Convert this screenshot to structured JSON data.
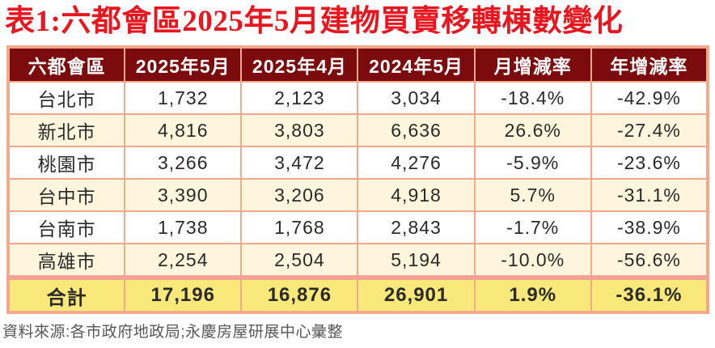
{
  "chart_data": {
    "type": "table",
    "title": "表1:六都會區2025年5月建物買賣移轉棟數變化",
    "columns": [
      "六都會區",
      "2025年5月",
      "2025年4月",
      "2024年5月",
      "月增減率",
      "年增減率"
    ],
    "rows": [
      [
        "台北市",
        "1,732",
        "2,123",
        "3,034",
        "-18.4%",
        "-42.9%"
      ],
      [
        "新北市",
        "4,816",
        "3,803",
        "6,636",
        "26.6%",
        "-27.4%"
      ],
      [
        "桃園市",
        "3,266",
        "3,472",
        "4,276",
        "-5.9%",
        "-23.6%"
      ],
      [
        "台中市",
        "3,390",
        "3,206",
        "4,918",
        "5.7%",
        "-31.1%"
      ],
      [
        "台南市",
        "1,738",
        "1,768",
        "2,843",
        "-1.7%",
        "-38.9%"
      ],
      [
        "高雄市",
        "2,254",
        "2,504",
        "5,194",
        "-10.0%",
        "-56.6%"
      ]
    ],
    "total_row": [
      "合計",
      "17,196",
      "16,876",
      "26,901",
      "1.9%",
      "-36.1%"
    ],
    "source": "資料來源:各市政府地政局;永慶房屋研展中心彙整",
    "layout": "striped table, header dark maroon with white text, alternating white/cream rows, yellow bold total row, salmon grid borders"
  },
  "colors": {
    "title_red": "#e8161f",
    "header_bg": "#7b0b0d",
    "header_text": "#ffffff",
    "border_salmon": "#f4a98c",
    "total_top_border": "#f3a396",
    "row_white": "#ffffff",
    "row_cream": "#fdf6dd",
    "total_yellow": "#f9e87a",
    "body_text": "#2b2a29",
    "source_gray": "#595757"
  }
}
